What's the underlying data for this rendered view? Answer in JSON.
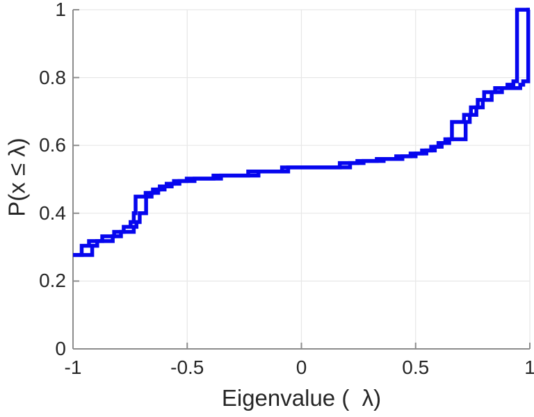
{
  "figure": {
    "background_color": "#ffffff",
    "axis_color": "#8c8c8c",
    "grid_color": "#e7e7e7",
    "text_color": "#262626"
  },
  "chart_data": {
    "type": "line",
    "subtype": "ecdf-stairs",
    "title": "",
    "xlabel": "Eigenvalue (  λ)",
    "ylabel": "P(x ≤ λ)",
    "xlim": [
      -1,
      1
    ],
    "ylim": [
      0,
      1
    ],
    "xticks": [
      -1,
      -0.5,
      0,
      0.5,
      1
    ],
    "yticks": [
      0,
      0.2,
      0.4,
      0.6,
      0.8,
      1
    ],
    "xtick_labels": [
      "-1",
      "-0.5",
      "0",
      "0.5",
      "1"
    ],
    "ytick_labels": [
      "0",
      "0.2",
      "0.4",
      "0.6",
      "0.8",
      "1"
    ],
    "grid": true,
    "legend": null,
    "line_color": "#0606ee",
    "line_width": 5.5,
    "series": [
      {
        "name": "ecdf-curve-1",
        "start": [
          -1,
          0.277
        ],
        "steps": [
          [
            -0.962,
            0.304
          ],
          [
            -0.93,
            0.318
          ],
          [
            -0.872,
            0.332
          ],
          [
            -0.82,
            0.345
          ],
          [
            -0.778,
            0.36
          ],
          [
            -0.748,
            0.374
          ],
          [
            -0.734,
            0.4
          ],
          [
            -0.726,
            0.449
          ],
          [
            -0.682,
            0.46
          ],
          [
            -0.65,
            0.47
          ],
          [
            -0.62,
            0.479
          ],
          [
            -0.59,
            0.487
          ],
          [
            -0.558,
            0.495
          ],
          [
            -0.502,
            0.502
          ],
          [
            -0.385,
            0.511
          ],
          [
            -0.233,
            0.523
          ],
          [
            -0.085,
            0.535
          ],
          [
            0.168,
            0.548
          ],
          [
            0.245,
            0.554
          ],
          [
            0.33,
            0.56
          ],
          [
            0.415,
            0.568
          ],
          [
            0.478,
            0.576
          ],
          [
            0.528,
            0.585
          ],
          [
            0.568,
            0.596
          ],
          [
            0.6,
            0.607
          ],
          [
            0.63,
            0.618
          ],
          [
            0.659,
            0.669
          ],
          [
            0.712,
            0.69
          ],
          [
            0.742,
            0.712
          ],
          [
            0.772,
            0.734
          ],
          [
            0.8,
            0.757
          ],
          [
            0.848,
            0.769
          ],
          [
            0.902,
            0.779
          ],
          [
            0.928,
            0.789
          ],
          [
            0.944,
            1.0
          ]
        ]
      },
      {
        "name": "ecdf-curve-2",
        "start": [
          -1,
          0.277
        ],
        "steps": [
          [
            -0.916,
            0.304
          ],
          [
            -0.894,
            0.318
          ],
          [
            -0.826,
            0.332
          ],
          [
            -0.79,
            0.345
          ],
          [
            -0.734,
            0.36
          ],
          [
            -0.722,
            0.374
          ],
          [
            -0.708,
            0.4
          ],
          [
            -0.68,
            0.449
          ],
          [
            -0.656,
            0.46
          ],
          [
            -0.627,
            0.47
          ],
          [
            -0.599,
            0.479
          ],
          [
            -0.568,
            0.487
          ],
          [
            -0.534,
            0.495
          ],
          [
            -0.468,
            0.502
          ],
          [
            -0.352,
            0.511
          ],
          [
            -0.188,
            0.523
          ],
          [
            -0.058,
            0.535
          ],
          [
            0.213,
            0.548
          ],
          [
            0.272,
            0.554
          ],
          [
            0.36,
            0.56
          ],
          [
            0.442,
            0.568
          ],
          [
            0.5,
            0.576
          ],
          [
            0.547,
            0.585
          ],
          [
            0.584,
            0.596
          ],
          [
            0.614,
            0.607
          ],
          [
            0.647,
            0.618
          ],
          [
            0.719,
            0.669
          ],
          [
            0.737,
            0.69
          ],
          [
            0.766,
            0.712
          ],
          [
            0.794,
            0.734
          ],
          [
            0.833,
            0.757
          ],
          [
            0.878,
            0.769
          ],
          [
            0.958,
            0.779
          ],
          [
            0.971,
            0.789
          ],
          [
            0.993,
            1.0
          ]
        ]
      }
    ]
  }
}
